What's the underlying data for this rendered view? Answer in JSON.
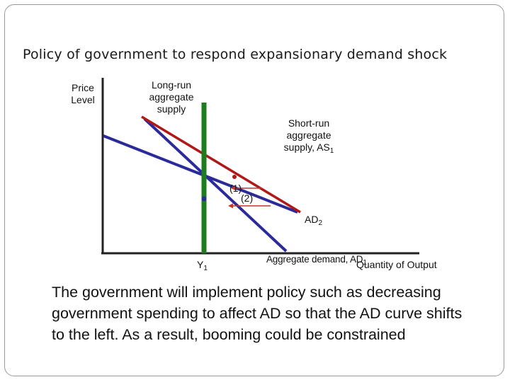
{
  "title": "Policy of government to respond expansionary demand shock",
  "axes": {
    "y_label_line1": "Price",
    "y_label_line2": "Level",
    "x_label": "Quantity of Output"
  },
  "labels": {
    "lras_line1": "Long-run",
    "lras_line2": "aggregate",
    "lras_line3": "supply",
    "sras_line1": "Short-run",
    "sras_line2": "aggregate",
    "sras_line3": "supply, AS",
    "sras_sub": "1",
    "ad2": "AD",
    "ad2_sub": "2",
    "ad1": "Aggregate demand, AD",
    "ad1_sub": "1",
    "y1": "Y",
    "y1_sub": "1",
    "step1": "(1)",
    "step2": "(2)"
  },
  "colors": {
    "lras": "#1e7b1e",
    "sras": "#b01818",
    "ad": "#2a2a9a",
    "arrow": "#c0392b"
  },
  "body": "The government will implement policy such as decreasing government spending to affect AD so that the AD curve shifts to the left. As a result, booming could be constrained"
}
